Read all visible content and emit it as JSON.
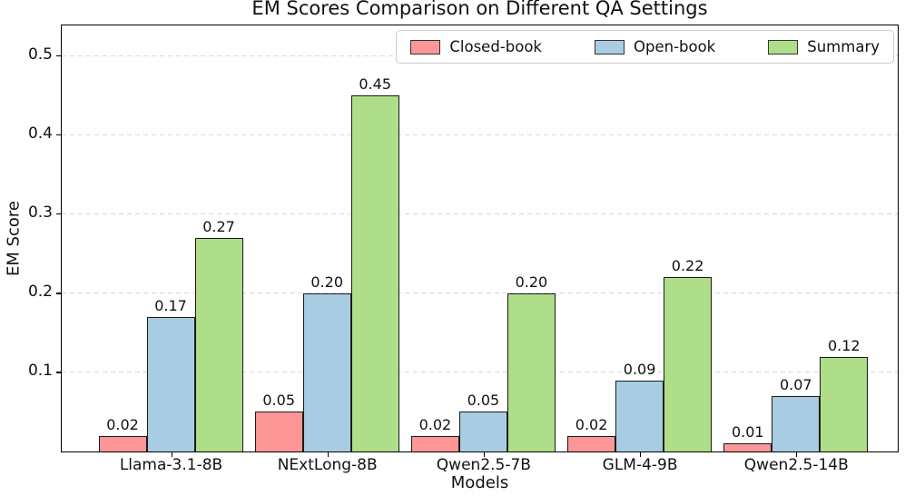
{
  "chart_data": {
    "type": "bar",
    "title": "EM Scores Comparison on Different QA Settings",
    "xlabel": "Models",
    "ylabel": "EM Score",
    "categories": [
      "Llama-3.1-8B",
      "NExtLong-8B",
      "Qwen2.5-7B",
      "GLM-4-9B",
      "Qwen2.5-14B"
    ],
    "series": [
      {
        "name": "Closed-book",
        "color": "#FC9697",
        "values": [
          0.02,
          0.05,
          0.02,
          0.02,
          0.01
        ]
      },
      {
        "name": "Open-book",
        "color": "#A8CDE2",
        "values": [
          0.17,
          0.2,
          0.05,
          0.09,
          0.07
        ]
      },
      {
        "name": "Summary",
        "color": "#AEDE8A",
        "values": [
          0.27,
          0.45,
          0.2,
          0.22,
          0.12
        ]
      }
    ],
    "yticks": [
      0.1,
      0.2,
      0.3,
      0.4,
      0.5
    ],
    "ylim": [
      0,
      0.5375
    ],
    "grid": "horizontal-dashed",
    "gridline_color": "#d9d9d9",
    "bar_edge_color": "#1a1a1a",
    "legend_position": "top-right-inside",
    "value_label_decimals": 2,
    "ytick_decimals": 1
  }
}
